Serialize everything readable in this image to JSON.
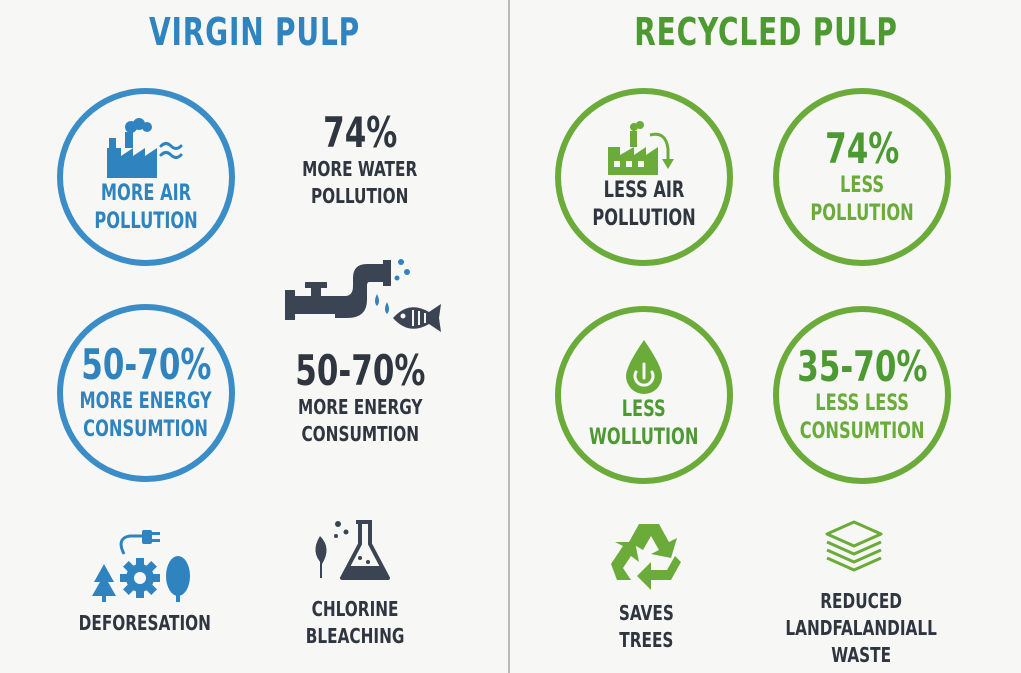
{
  "colors": {
    "blue": "#2f84bf",
    "dark": "#2f3640",
    "green": "#4e9a32",
    "light_green": "#6aab3a",
    "divider": "#b9b9b9"
  },
  "virgin": {
    "title": "VIRGIN PULP",
    "air": {
      "icon": "factory-smoke-icon",
      "label": "MORE AIR\nPOLLUTION"
    },
    "water": {
      "value": "74%",
      "label": "MORE WATER\nPOLLUTION",
      "icon": "pipe-fish-icon"
    },
    "energy_circle": {
      "value": "50-70%",
      "label": "MORE ENERGY\nCONSUMTION"
    },
    "energy_text": {
      "value": "50-70%",
      "label": "MORE ENERGY\nCONSUMTION"
    },
    "deforestation": {
      "icon": "plug-gear-trees-icon",
      "label": "DEFORESATION"
    },
    "chlorine": {
      "icon": "flask-leaf-icon",
      "label": "CHLORINE\nBLEACHING"
    }
  },
  "recycled": {
    "title": "RECYCLED PULP",
    "air": {
      "icon": "factory-arrow-icon",
      "label": "LESS AIR\nPOLLUTION"
    },
    "pollution": {
      "value": "74%",
      "label": "LESS\nPOLLUTION"
    },
    "water": {
      "icon": "water-drop-power-icon",
      "label": "LESS\nWOLLUTION"
    },
    "energy": {
      "value": "35-70%",
      "label": "LESS LESS\nCONSUMTION"
    },
    "trees": {
      "icon": "recycle-icon",
      "label": "SAVES\nTREES"
    },
    "landfill": {
      "icon": "paper-stack-icon",
      "label": "REDUCED\nLANDFALANDIALL\nWASTE"
    }
  }
}
